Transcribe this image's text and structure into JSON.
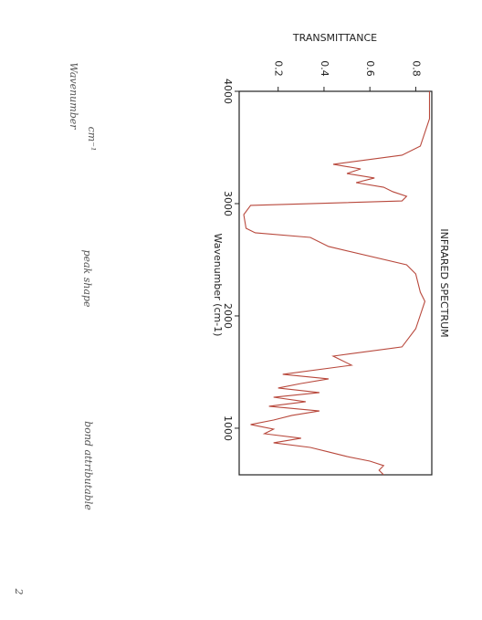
{
  "chart_data": {
    "type": "line",
    "title": "INFRARED SPECTRUM",
    "x_label": "Wavenumber (cm-1)",
    "y_label": "TRANSMITTANCE",
    "x": [
      4000,
      3756,
      3512,
      3431,
      3350,
      3309,
      3268,
      3228,
      3187,
      3146,
      3106,
      3065,
      3024,
      2984,
      2902,
      2780,
      2740,
      2699,
      2618,
      2455,
      2374,
      2211,
      2130,
      2008,
      1886,
      1724,
      1642,
      1561,
      1480,
      1439,
      1398,
      1358,
      1317,
      1276,
      1236,
      1195,
      1154,
      1114,
      1073,
      1033,
      992,
      951,
      911,
      870,
      829,
      789,
      748,
      707,
      667,
      626,
      585
    ],
    "series": [
      {
        "color": "#b8483c",
        "values": [
          0.86,
          0.86,
          0.82,
          0.74,
          0.44,
          0.56,
          0.5,
          0.62,
          0.54,
          0.66,
          0.7,
          0.76,
          0.74,
          0.08,
          0.05,
          0.06,
          0.1,
          0.34,
          0.42,
          0.76,
          0.8,
          0.82,
          0.84,
          0.82,
          0.8,
          0.74,
          0.44,
          0.52,
          0.22,
          0.42,
          0.3,
          0.2,
          0.38,
          0.18,
          0.32,
          0.16,
          0.38,
          0.26,
          0.18,
          0.08,
          0.18,
          0.14,
          0.3,
          0.18,
          0.34,
          0.42,
          0.5,
          0.6,
          0.66,
          0.64,
          0.66
        ]
      }
    ],
    "xlim": [
      4000,
      585
    ],
    "ylim": [
      0.03,
      0.87
    ],
    "xticks": [
      4000,
      3000,
      2000,
      1000
    ],
    "yticks": [
      0.2,
      0.4,
      0.6,
      0.8
    ]
  },
  "annotations": {
    "column_1": "Wavenumber",
    "column_1_unit": "cm⁻¹",
    "column_2": "peak shape",
    "column_3": "bond attributable",
    "page_number": "2"
  }
}
